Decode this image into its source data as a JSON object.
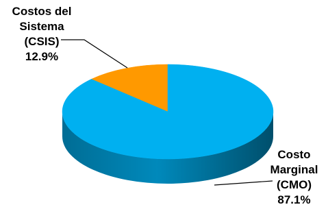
{
  "chart_data": {
    "type": "pie",
    "style": "3d",
    "slices": [
      {
        "label_lines": [
          "Costos del",
          "Sistema",
          "(CSIS)"
        ],
        "value": 12.9,
        "value_label": "12.9%",
        "color": "#FF9900"
      },
      {
        "label_lines": [
          "Costo",
          "Marginal",
          "(CMO)"
        ],
        "value": 87.1,
        "value_label": "87.1%",
        "color": "#00B0F0"
      }
    ],
    "legend": "none"
  }
}
